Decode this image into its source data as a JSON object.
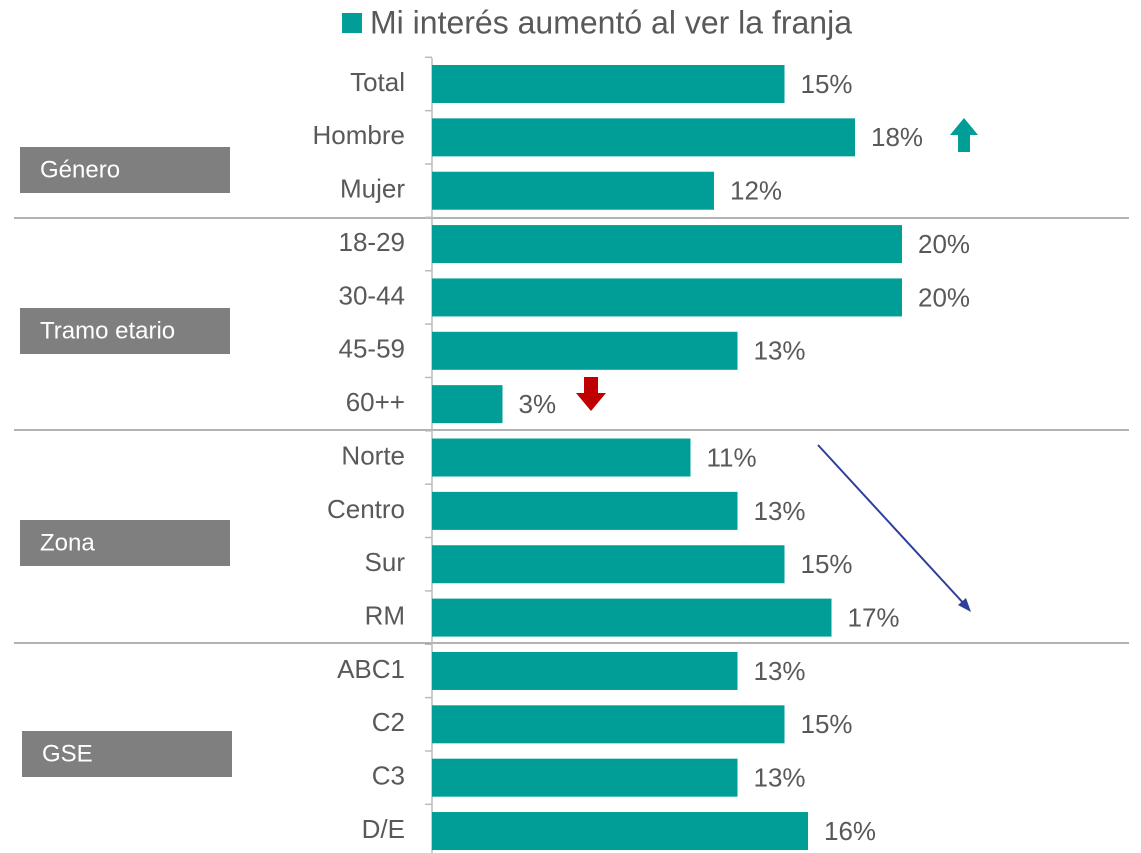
{
  "chart_data": {
    "type": "bar",
    "orientation": "horizontal",
    "categories": [
      "Total",
      "Hombre",
      "Mujer",
      "18-29",
      "30-44",
      "45-59",
      "60++",
      "Norte",
      "Centro",
      "Sur",
      "RM",
      "ABC1",
      "C2",
      "C3",
      "D/E"
    ],
    "series": [
      {
        "name": "Mi interés aumentó al ver la franja",
        "color": "#009e97",
        "values": [
          15,
          18,
          12,
          20,
          20,
          13,
          3,
          11,
          13,
          15,
          17,
          13,
          15,
          13,
          16
        ],
        "value_labels": [
          "15%",
          "18%",
          "12%",
          "20%",
          "20%",
          "13%",
          "3%",
          "11%",
          "13%",
          "15%",
          "17%",
          "13%",
          "15%",
          "13%",
          "16%"
        ]
      }
    ],
    "groups": [
      {
        "label": "Género"
      },
      {
        "label": "Tramo etario"
      },
      {
        "label": "Zona"
      },
      {
        "label": "GSE"
      }
    ],
    "legend": "top"
  }
}
